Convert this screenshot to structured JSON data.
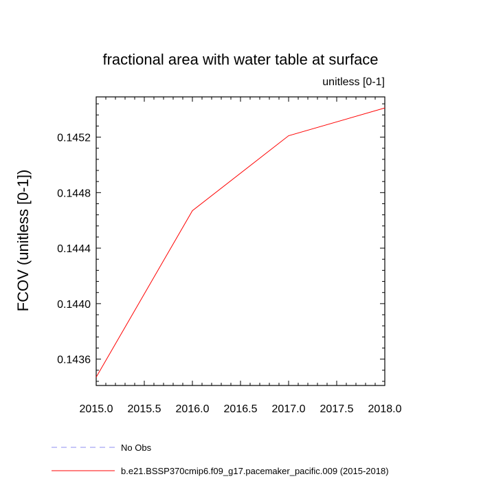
{
  "chart_data": {
    "type": "line",
    "title": "fractional area with water table at surface",
    "subtitle": "unitless [0-1]",
    "xlabel": "",
    "ylabel": "FCOV  (unitless [0-1])",
    "xlim": [
      2015.0,
      2018.0
    ],
    "ylim": [
      0.14341,
      0.14549
    ],
    "x_ticks": [
      "2015.0",
      "2015.5",
      "2016.0",
      "2016.5",
      "2017.0",
      "2017.5",
      "2018.0"
    ],
    "y_ticks": [
      "0.1436",
      "0.1440",
      "0.1444",
      "0.1448",
      "0.1452"
    ],
    "grid": false,
    "legend_position": "bottom-left",
    "series": [
      {
        "name": "No Obs",
        "color": "#8c8cf0",
        "style": "dashed",
        "x": [],
        "y": []
      },
      {
        "name": "b.e21.BSSP370cmip6.f09_g17.pacemaker_pacific.009 (2015-2018)",
        "color": "#ff0000",
        "style": "solid",
        "x": [
          2015,
          2016,
          2017,
          2018
        ],
        "y": [
          0.14347,
          0.14467,
          0.14521,
          0.14541
        ]
      }
    ]
  }
}
